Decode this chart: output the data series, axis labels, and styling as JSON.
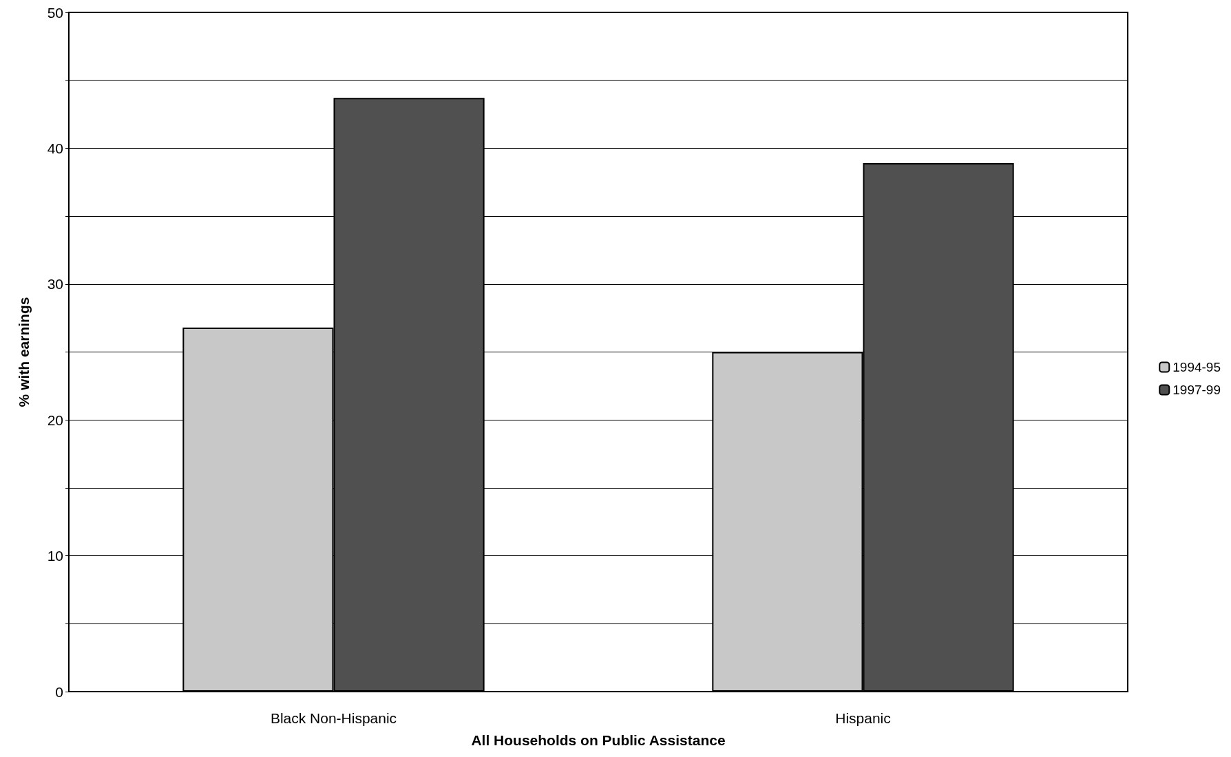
{
  "chart_data": {
    "type": "bar",
    "xlabel": "All Households on Public Assistance",
    "ylabel": "% with earnings",
    "categories": [
      "Black Non-Hispanic",
      "Hispanic"
    ],
    "series": [
      {
        "name": "1994-95",
        "color": "#c8c8c8",
        "values": [
          26.8,
          25.0
        ]
      },
      {
        "name": "1997-99",
        "color": "#505050",
        "values": [
          43.7,
          38.9
        ]
      }
    ],
    "ylim": [
      0,
      50
    ],
    "yticks": [
      0,
      {
        "value": 5,
        "label": null
      },
      10,
      {
        "value": 15,
        "label": null
      },
      20,
      {
        "value": 25,
        "label": null
      },
      30,
      {
        "value": 35,
        "label": null
      },
      40,
      {
        "value": 45,
        "label": null
      },
      50
    ],
    "grid": "y",
    "legend": "right"
  }
}
